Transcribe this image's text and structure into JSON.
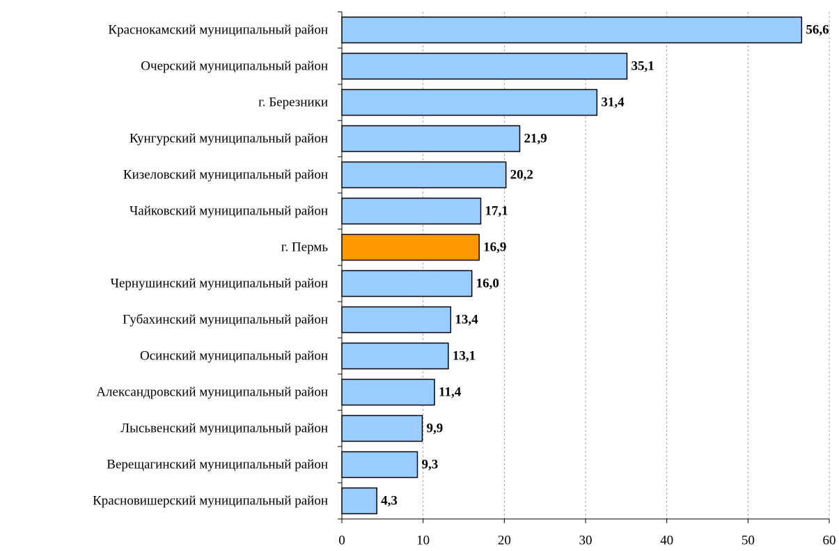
{
  "chart_data": {
    "type": "bar",
    "orientation": "horizontal",
    "title": "",
    "xlabel": "",
    "ylabel": "",
    "xlim": [
      0,
      60
    ],
    "x_ticks": [
      0,
      10,
      20,
      30,
      40,
      50,
      60
    ],
    "grid": "vertical dashed",
    "categories": [
      "Краснокамский муниципальный район",
      "Очерский муниципальный район",
      "г. Березники",
      "Кунгурский муниципальный район",
      "Кизеловский муниципальный район",
      "Чайковский муниципальный район",
      "г. Пермь",
      "Чернушинский муниципальный район",
      "Губахинский муниципальный район",
      "Осинский муниципальный район",
      "Александровский муниципальный район",
      "Лысьвенский муниципальный район",
      "Верещагинский муниципальный район",
      "Красновишерский муниципальный район"
    ],
    "values": [
      56.6,
      35.1,
      31.4,
      21.9,
      20.2,
      17.1,
      16.9,
      16.0,
      13.4,
      13.1,
      11.4,
      9.9,
      9.3,
      4.3
    ],
    "value_labels": [
      "56,6",
      "35,1",
      "31,4",
      "21,9",
      "20,2",
      "17,1",
      "16,9",
      "16,0",
      "13,4",
      "13,1",
      "11,4",
      "9,9",
      "9,3",
      "4,3"
    ],
    "highlighted_category": "г. Пермь",
    "colors": {
      "bar": "#99ccff",
      "highlight": "#ff9900",
      "bar_border": "#000000",
      "grid": "#a0a0a0"
    }
  }
}
